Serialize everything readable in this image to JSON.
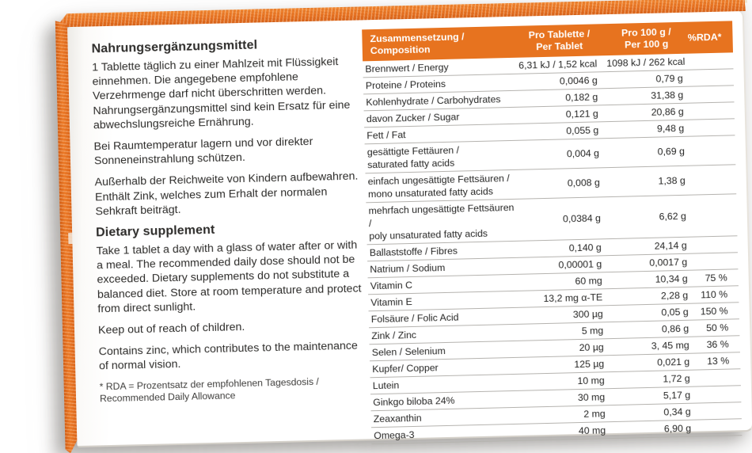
{
  "panel": {
    "german": {
      "title": "Nahrungsergänzungsmittel",
      "paragraphs": [
        "1 Tablette täglich zu einer Mahlzeit mit Flüssigkeit einnehmen. Die angegebene empfohlene Verzehrmenge darf nicht überschritten werden. Nahrungsergänzungsmittel sind kein Ersatz für eine abwechslungsreiche Ernährung.",
        "Bei Raumtemperatur lagern und vor direkter Sonneneinstrahlung schützen.",
        "Außerhalb der Reichweite von Kindern aufbewahren. Enthält Zink, welches zum Erhalt der normalen Sehkraft beiträgt."
      ]
    },
    "english": {
      "title": "Dietary supplement",
      "paragraphs": [
        "Take 1 tablet a day with a glass of water after or with a meal. The recommended daily dose should not be exceeded. Dietary supplements do not substitute a balanced diet. Store at room temperature and protect from direct sunlight.",
        "Keep out of reach of children.",
        "Contains zinc, which contributes to the maintenance of normal vision."
      ]
    },
    "footnote": "* RDA = Prozentsatz der empfohlenen Tagesdosis /\nRecommended Daily Allowance"
  },
  "table": {
    "col_composition": "Zusammensetzung /\nComposition",
    "col_per_tablet": "Pro Tablette /\nPer Tablet",
    "col_per_100g": "Pro 100 g /\nPer 100 g",
    "col_rda": "%RDA*",
    "rows": [
      {
        "label": "Brennwert / Energy",
        "per_tablet": "6,31 kJ / 1,52 kcal",
        "per_100g": "1098 kJ / 262 kcal",
        "rda": ""
      },
      {
        "label": "Proteine / Proteins",
        "per_tablet": "0,0046 g",
        "per_100g": "0,79 g",
        "rda": ""
      },
      {
        "label": "Kohlenhydrate / Carbohydrates",
        "per_tablet": "0,182 g",
        "per_100g": "31,38 g",
        "rda": ""
      },
      {
        "label": "davon Zucker / Sugar",
        "per_tablet": "0,121 g",
        "per_100g": "20,86 g",
        "rda": ""
      },
      {
        "label": "Fett / Fat",
        "per_tablet": "0,055 g",
        "per_100g": "9,48 g",
        "rda": ""
      },
      {
        "label": "gesättigte Fettäuren /\nsaturated fatty acids",
        "per_tablet": "0,004 g",
        "per_100g": "0,69 g",
        "rda": ""
      },
      {
        "label": "einfach ungesättigte Fettsäuren /\nmono unsaturated fatty acids",
        "per_tablet": "0,008 g",
        "per_100g": "1,38 g",
        "rda": ""
      },
      {
        "label": "mehrfach ungesättigte Fettsäuren /\npoly unsaturated fatty acids",
        "per_tablet": "0,0384 g",
        "per_100g": "6,62 g",
        "rda": ""
      },
      {
        "label": "Ballaststoffe / Fibres",
        "per_tablet": "0,140 g",
        "per_100g": "24,14 g",
        "rda": ""
      },
      {
        "label": "Natrium / Sodium",
        "per_tablet": "0,00001 g",
        "per_100g": "0,0017 g",
        "rda": ""
      },
      {
        "label": "Vitamin C",
        "per_tablet": "60 mg",
        "per_100g": "10,34 g",
        "rda": "75 %"
      },
      {
        "label": "Vitamin E",
        "per_tablet": "13,2 mg α-TE",
        "per_100g": "2,28 g",
        "rda": "110 %"
      },
      {
        "label": "Folsäure / Folic Acid",
        "per_tablet": "300 µg",
        "per_100g": "0,05 g",
        "rda": "150 %"
      },
      {
        "label": "Zink / Zinc",
        "per_tablet": "5 mg",
        "per_100g": "0,86 g",
        "rda": "50 %"
      },
      {
        "label": "Selen / Selenium",
        "per_tablet": "20 µg",
        "per_100g": "3, 45 mg",
        "rda": "36 %"
      },
      {
        "label": "Kupfer/ Copper",
        "per_tablet": "125 µg",
        "per_100g": "0,021 g",
        "rda": "13 %"
      },
      {
        "label": "Lutein",
        "per_tablet": "10 mg",
        "per_100g": "1,72 g",
        "rda": ""
      },
      {
        "label": "Ginkgo biloba 24%",
        "per_tablet": "30 mg",
        "per_100g": "5,17 g",
        "rda": ""
      },
      {
        "label": "Zeaxanthin",
        "per_tablet": "2 mg",
        "per_100g": "0,34 g",
        "rda": ""
      },
      {
        "label": "Omega-3",
        "per_tablet": "40 mg",
        "per_100g": "6,90 g",
        "rda": ""
      }
    ]
  },
  "colors": {
    "table_header_orange": "#e7731f",
    "box_edge_orange": "#ea7a25",
    "box_edge_dark_orange": "#d9641a",
    "panel_white": "#ffffff",
    "text_dark": "#2d2c2a",
    "row_line_gray": "#b5b3af"
  }
}
